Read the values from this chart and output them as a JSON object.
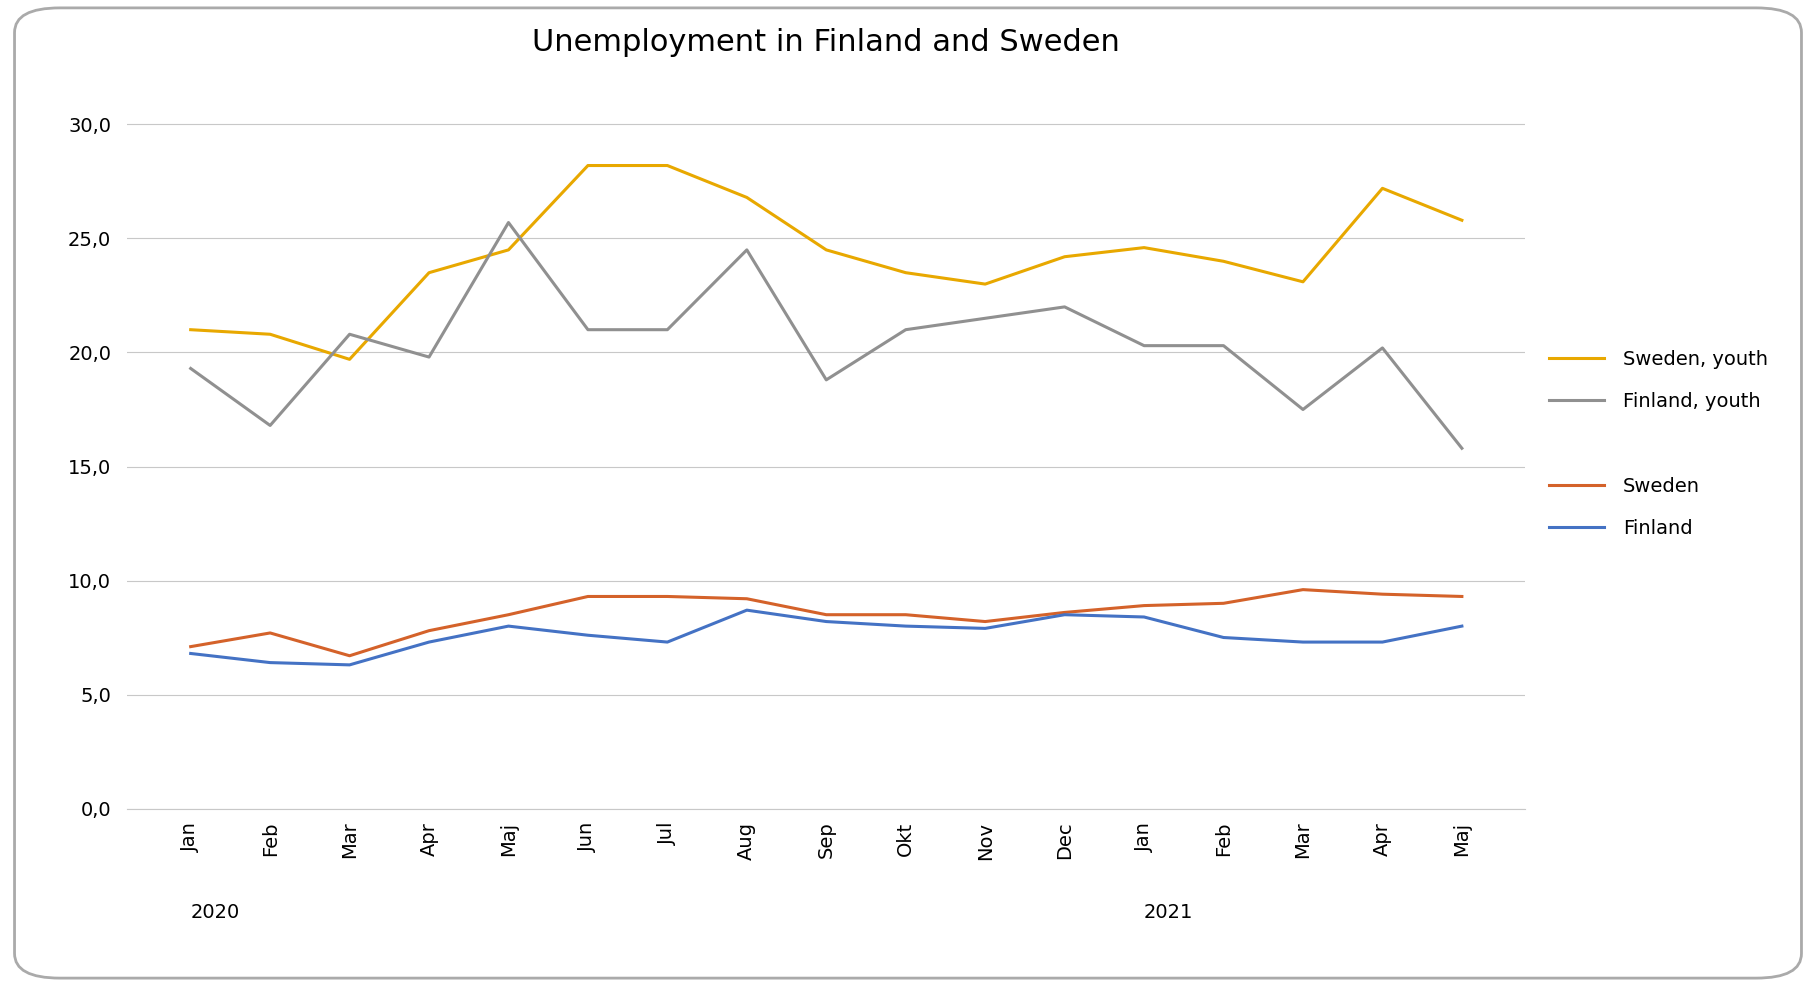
{
  "title": "Unemployment in Finland and Sweden",
  "x_labels": [
    "Jan",
    "Feb",
    "Mar",
    "Apr",
    "Maj",
    "Jun",
    "Jul",
    "Aug",
    "Sep",
    "Okt",
    "Nov",
    "Dec",
    "Jan",
    "Feb",
    "Mar",
    "Apr",
    "Maj"
  ],
  "year_labels": [
    [
      "2020",
      0
    ],
    [
      "2021",
      12
    ]
  ],
  "sweden_youth": [
    21.0,
    20.8,
    19.7,
    23.5,
    24.5,
    28.2,
    28.2,
    26.8,
    24.5,
    23.5,
    23.0,
    24.2,
    24.6,
    24.0,
    23.1,
    27.2,
    25.8
  ],
  "finland_youth": [
    19.3,
    16.8,
    20.8,
    19.8,
    25.7,
    21.0,
    21.0,
    24.5,
    18.8,
    21.0,
    21.5,
    22.0,
    20.3,
    20.3,
    17.5,
    20.2,
    15.8
  ],
  "sweden": [
    7.1,
    7.7,
    6.7,
    7.8,
    8.5,
    9.3,
    9.3,
    9.2,
    8.5,
    8.5,
    8.2,
    8.6,
    8.9,
    9.0,
    9.6,
    9.4,
    9.3
  ],
  "finland": [
    6.8,
    6.4,
    6.3,
    7.3,
    8.0,
    7.6,
    7.3,
    8.7,
    8.2,
    8.0,
    7.9,
    8.5,
    8.4,
    7.5,
    7.3,
    7.3,
    8.0
  ],
  "sweden_youth_color": "#E8A800",
  "finland_youth_color": "#909090",
  "sweden_color": "#D4622A",
  "finland_color": "#4472C4",
  "background_color": "#FFFFFF",
  "border_color": "#AAAAAA",
  "ylim": [
    0,
    32
  ],
  "yticks": [
    0.0,
    5.0,
    10.0,
    15.0,
    20.0,
    25.0,
    30.0
  ],
  "legend_entries": [
    "Sweden, youth",
    "Finland, youth",
    "Sweden",
    "Finland"
  ],
  "linewidth": 2.2,
  "title_fontsize": 22,
  "tick_fontsize": 14,
  "legend_fontsize": 14
}
